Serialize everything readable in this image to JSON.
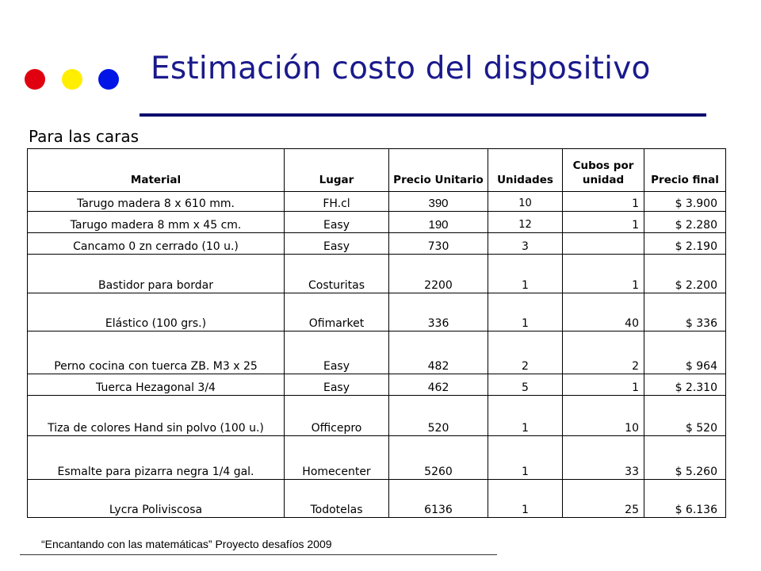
{
  "header": {
    "title": "Estimación costo del dispositivo",
    "subtitle": "Para las caras",
    "dots": [
      "#e0000f",
      "#ffee00",
      "#0015e6"
    ],
    "title_color": "#1a1a8c"
  },
  "table": {
    "headers": {
      "material": "Material",
      "lugar": "Lugar",
      "precio_unitario": "Precio Unitario",
      "unidades": "Unidades",
      "cubos_por_unidad": "Cubos por unidad",
      "precio_final": "Precio final"
    },
    "rows": [
      {
        "material": "Tarugo madera 8 x 610 mm.",
        "lugar": "FH.cl",
        "precio_unitario": "390",
        "unidades": "10",
        "cubos": "1",
        "precio_final": "$ 3.900"
      },
      {
        "material": "Tarugo madera  8 mm x 45 cm.",
        "lugar": "Easy",
        "precio_unitario": "190",
        "unidades": "12",
        "cubos": "1",
        "precio_final": "$ 2.280"
      },
      {
        "material": "Cancamo 0 zn cerrado (10 u.)",
        "lugar": "Easy",
        "precio_unitario": "730",
        "unidades": "3",
        "cubos": "",
        "precio_final": "$ 2.190"
      },
      {
        "material": "Bastidor para bordar",
        "lugar": "Costuritas",
        "precio_unitario": "2200",
        "unidades": "1",
        "cubos": "1",
        "precio_final": "$ 2.200"
      },
      {
        "material": "Elástico (100 grs.)",
        "lugar": "Ofimarket",
        "precio_unitario": "336",
        "unidades": "1",
        "cubos": "40",
        "precio_final": "$ 336"
      },
      {
        "material": "Perno cocina con tuerca ZB. M3 x 25",
        "lugar": "Easy",
        "precio_unitario": "482",
        "unidades": "2",
        "cubos": "2",
        "precio_final": "$ 964"
      },
      {
        "material": "Tuerca Hezagonal 3/4",
        "lugar": "Easy",
        "precio_unitario": "462",
        "unidades": "5",
        "cubos": "1",
        "precio_final": "$ 2.310"
      },
      {
        "material": "Tiza de colores Hand sin polvo (100 u.)",
        "lugar": "Officepro",
        "precio_unitario": "520",
        "unidades": "1",
        "cubos": "10",
        "precio_final": "$ 520"
      },
      {
        "material": "Esmalte para pizarra negra 1/4 gal.",
        "lugar": "Homecenter",
        "precio_unitario": "5260",
        "unidades": "1",
        "cubos": "33",
        "precio_final": "$ 5.260"
      },
      {
        "material": "Lycra Poliviscosa",
        "lugar": "Todotelas",
        "precio_unitario": "6136",
        "unidades": "1",
        "cubos": "25",
        "precio_final": "$ 6.136"
      }
    ]
  },
  "footer": {
    "text": "“Encantando con las matemáticas” Proyecto desafíos 2009"
  }
}
